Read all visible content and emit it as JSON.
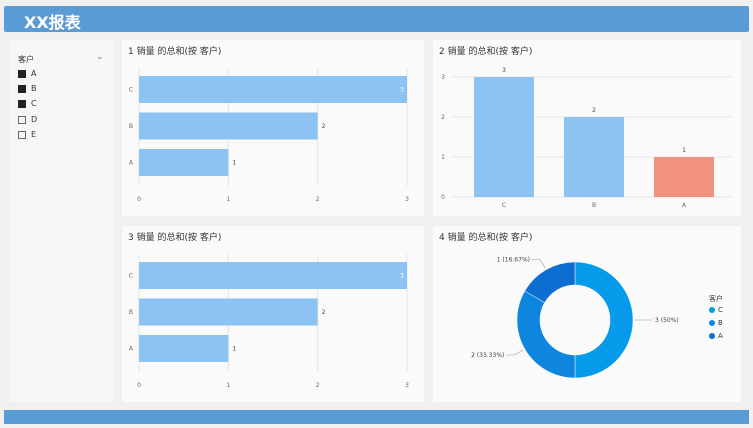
{
  "header": {
    "title": "XX报表"
  },
  "slicer": {
    "title": "客户",
    "items": [
      {
        "label": "A",
        "checked": true
      },
      {
        "label": "B",
        "checked": true
      },
      {
        "label": "C",
        "checked": true
      },
      {
        "label": "D",
        "checked": false
      },
      {
        "label": "E",
        "checked": false
      }
    ]
  },
  "chart_data": [
    {
      "type": "bar",
      "orientation": "horizontal",
      "title": "1 销量 的总和(按 客户)",
      "categories": [
        "C",
        "B",
        "A"
      ],
      "values": [
        3,
        2,
        1
      ],
      "xlim": [
        0,
        3
      ],
      "xticks": [
        "0",
        "1",
        "2",
        "3"
      ],
      "color": "#8dc3f2",
      "grid": true
    },
    {
      "type": "bar",
      "orientation": "vertical",
      "title": "2 销量 的总和(按 客户)",
      "categories": [
        "C",
        "B",
        "A"
      ],
      "values": [
        3,
        2,
        1
      ],
      "ylim": [
        0,
        3
      ],
      "yticks": [
        "0",
        "1",
        "2",
        "3"
      ],
      "colors": [
        "#8dc3f2",
        "#8dc3f2",
        "#f2917f"
      ],
      "grid": true
    },
    {
      "type": "bar",
      "orientation": "horizontal",
      "title": "3 销量 的总和(按 客户)",
      "categories": [
        "C",
        "B",
        "A"
      ],
      "values": [
        3,
        2,
        1
      ],
      "xlim": [
        0,
        3
      ],
      "xticks": [
        "0",
        "1",
        "2",
        "3"
      ],
      "color": "#8dc3f2",
      "grid": true
    },
    {
      "type": "pie",
      "donut": true,
      "title": "4 销量 的总和(按 客户)",
      "legend_title": "客户",
      "legend": "right",
      "slices": [
        {
          "name": "C",
          "value": 3,
          "label": "3 (50%)",
          "color": "#069bea"
        },
        {
          "name": "B",
          "value": 2,
          "label": "2 (33.33%)",
          "color": "#0e86df"
        },
        {
          "name": "A",
          "value": 1,
          "label": "1 (16.67%)",
          "color": "#0c6ed1"
        }
      ]
    }
  ]
}
